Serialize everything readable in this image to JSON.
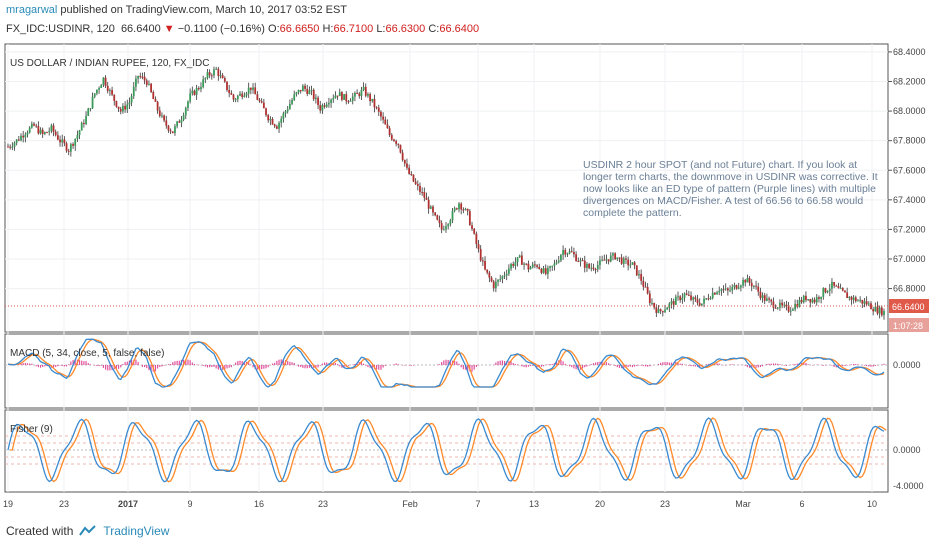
{
  "header": {
    "author": "mragarwal",
    "published": "published on TradingView.com, March 10, 2017 03:52 EST",
    "symbol": "FX_IDC:USDINR, 120",
    "last": "66.6400",
    "arrow": "▼",
    "change": "−0.1100 (−0.16%)",
    "o_label": "O:",
    "o": "66.6650",
    "h_label": "H:",
    "h": "66.7100",
    "l_label": "L:",
    "l": "66.6300",
    "c_label": "C:",
    "c": "66.6400"
  },
  "note": "USDINR 2 hour SPOT (and not Future) chart. If you look at longer term charts, the downmove in USDINR was corrective. It now looks like an ED type of pattern (Purple lines) with multiple divergences on MACD/Fisher. A test of 66.56 to 66.58 would complete the pattern.",
  "footer": {
    "created": "Created with",
    "brand": "TradingView"
  },
  "colors": {
    "up": "#3a9a5a",
    "down": "#b03030",
    "macd": "#3a8ad0",
    "signal": "#ff8a2a",
    "hist": "#e0509a",
    "accent": "#e05a4a"
  },
  "chart_data": [
    {
      "type": "candlestick",
      "title": "US DOLLAR / INDIAN RUPEE, 120, FX_IDC",
      "ylim": [
        66.52,
        68.44
      ],
      "y_ticks": [
        "68.4000",
        "68.2000",
        "68.0000",
        "67.8000",
        "67.6000",
        "67.4000",
        "67.2000",
        "67.0000",
        "66.8000"
      ],
      "last_price_label": "66.6400",
      "countdown_label": "1:07:28",
      "x_tick_labels": [
        "19",
        "23",
        "2017",
        "9",
        "16",
        "23",
        "Feb",
        "7",
        "13",
        "20",
        "23",
        "Mar",
        "6",
        "10"
      ],
      "close_path": [
        [
          0,
          67.76
        ],
        [
          4,
          67.8
        ],
        [
          8,
          67.86
        ],
        [
          12,
          67.9
        ],
        [
          16,
          67.84
        ],
        [
          20,
          67.88
        ],
        [
          24,
          67.8
        ],
        [
          28,
          67.74
        ],
        [
          32,
          67.84
        ],
        [
          36,
          67.96
        ],
        [
          40,
          68.12
        ],
        [
          44,
          68.22
        ],
        [
          48,
          68.1
        ],
        [
          52,
          68.0
        ],
        [
          56,
          68.06
        ],
        [
          60,
          68.24
        ],
        [
          64,
          68.2
        ],
        [
          68,
          68.04
        ],
        [
          72,
          67.92
        ],
        [
          76,
          67.86
        ],
        [
          80,
          67.96
        ],
        [
          84,
          68.1
        ],
        [
          88,
          68.16
        ],
        [
          92,
          68.24
        ],
        [
          96,
          68.28
        ],
        [
          100,
          68.18
        ],
        [
          104,
          68.08
        ],
        [
          108,
          68.12
        ],
        [
          112,
          68.16
        ],
        [
          116,
          68.06
        ],
        [
          120,
          67.96
        ],
        [
          124,
          67.9
        ],
        [
          128,
          68.0
        ],
        [
          132,
          68.1
        ],
        [
          136,
          68.16
        ],
        [
          140,
          68.12
        ],
        [
          144,
          68.02
        ],
        [
          148,
          68.08
        ],
        [
          152,
          68.12
        ],
        [
          156,
          68.08
        ],
        [
          160,
          68.1
        ],
        [
          164,
          68.14
        ],
        [
          168,
          68.06
        ],
        [
          172,
          67.96
        ],
        [
          176,
          67.84
        ],
        [
          180,
          67.78
        ],
        [
          184,
          67.6
        ],
        [
          188,
          67.5
        ],
        [
          192,
          67.42
        ],
        [
          196,
          67.3
        ],
        [
          200,
          67.2
        ],
        [
          204,
          67.28
        ],
        [
          208,
          67.38
        ],
        [
          212,
          67.3
        ],
        [
          216,
          67.1
        ],
        [
          220,
          66.92
        ],
        [
          224,
          66.82
        ],
        [
          228,
          66.88
        ],
        [
          232,
          66.96
        ],
        [
          236,
          67.0
        ],
        [
          240,
          66.94
        ],
        [
          244,
          66.96
        ],
        [
          248,
          66.9
        ],
        [
          252,
          66.96
        ],
        [
          256,
          67.06
        ],
        [
          260,
          67.04
        ],
        [
          264,
          66.98
        ],
        [
          268,
          66.94
        ],
        [
          272,
          66.96
        ],
        [
          276,
          67.0
        ],
        [
          280,
          67.02
        ],
        [
          284,
          66.98
        ],
        [
          288,
          66.96
        ],
        [
          292,
          66.86
        ],
        [
          296,
          66.72
        ],
        [
          300,
          66.64
        ],
        [
          304,
          66.68
        ],
        [
          308,
          66.72
        ],
        [
          312,
          66.76
        ],
        [
          316,
          66.72
        ],
        [
          320,
          66.7
        ],
        [
          324,
          66.76
        ],
        [
          328,
          66.8
        ],
        [
          332,
          66.78
        ],
        [
          336,
          66.82
        ],
        [
          340,
          66.86
        ],
        [
          344,
          66.82
        ],
        [
          348,
          66.74
        ],
        [
          352,
          66.7
        ],
        [
          356,
          66.68
        ],
        [
          360,
          66.66
        ],
        [
          364,
          66.7
        ],
        [
          368,
          66.74
        ],
        [
          372,
          66.72
        ],
        [
          376,
          66.78
        ],
        [
          380,
          66.82
        ],
        [
          384,
          66.78
        ],
        [
          388,
          66.74
        ],
        [
          392,
          66.72
        ],
        [
          396,
          66.7
        ],
        [
          400,
          66.66
        ],
        [
          404,
          66.64
        ]
      ]
    },
    {
      "type": "line",
      "title": "MACD (5, 34, close, 5, false, false)",
      "y_ticks": [
        "0.0000"
      ],
      "series": [
        {
          "name": "MACD"
        },
        {
          "name": "Signal"
        },
        {
          "name": "Histogram"
        }
      ]
    },
    {
      "type": "line",
      "title": "Fisher (9)",
      "y_ticks": [
        "0.0000",
        "-4.0000"
      ],
      "series": [
        {
          "name": "Fisher"
        },
        {
          "name": "Trigger"
        }
      ]
    }
  ]
}
